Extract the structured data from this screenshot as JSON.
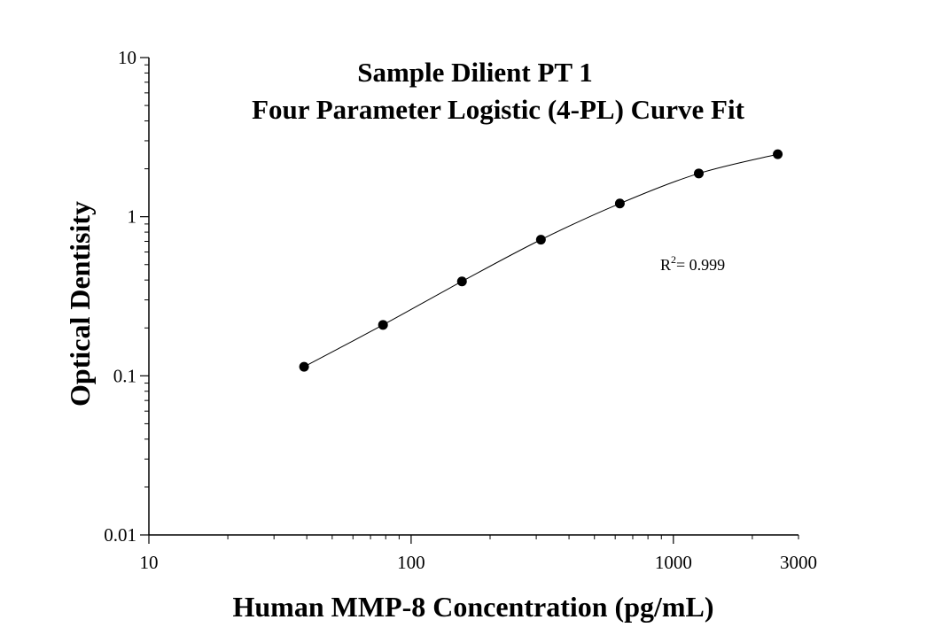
{
  "chart_data": {
    "type": "scatter",
    "title": "Sample Dilient PT 1",
    "subtitle": "Four Parameter Logistic (4-PL) Curve Fit",
    "xlabel": "Human MMP-8 Concentration (pg/mL)",
    "ylabel": "Optical Dentisity",
    "x_scale": "log",
    "y_scale": "log",
    "xlim": [
      10,
      3000
    ],
    "ylim": [
      0.01,
      10
    ],
    "x_ticks": [
      {
        "value": 10,
        "label": "10"
      },
      {
        "value": 100,
        "label": "100"
      },
      {
        "value": 1000,
        "label": "1000"
      },
      {
        "value": 3000,
        "label": "3000"
      }
    ],
    "y_ticks": [
      {
        "value": 0.01,
        "label": "0.01"
      },
      {
        "value": 0.1,
        "label": "0.1"
      },
      {
        "value": 1,
        "label": "1"
      },
      {
        "value": 10,
        "label": "10"
      }
    ],
    "series": [
      {
        "x": [
          39.0625,
          78.125,
          156.25,
          312.5,
          625,
          1250,
          2500
        ],
        "y": [
          0.114,
          0.209,
          0.392,
          0.717,
          1.21,
          1.87,
          2.47
        ]
      }
    ],
    "fit_curve": "4-PL",
    "annotation": {
      "text": "R",
      "sup": "2",
      "rest": "= 0.999"
    },
    "grid": false,
    "legend": "none",
    "marker_color": "#000000"
  }
}
